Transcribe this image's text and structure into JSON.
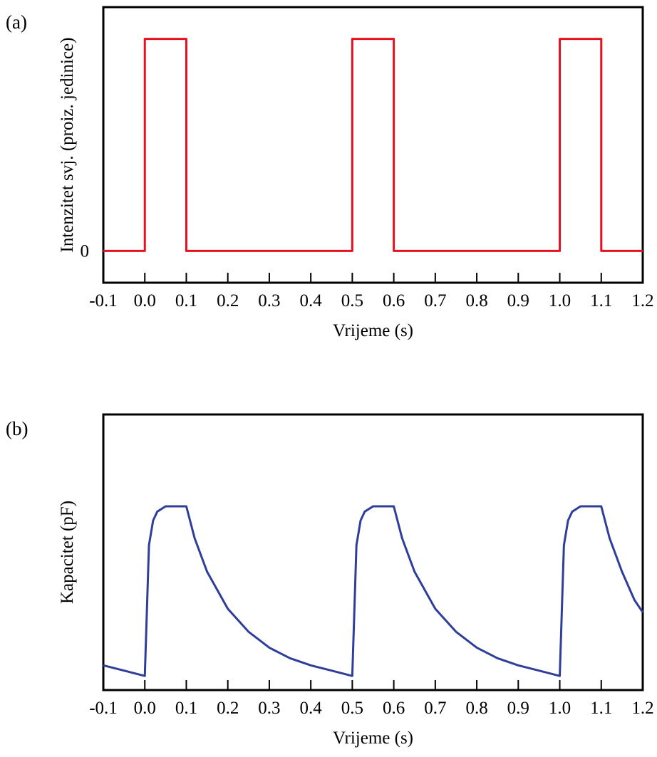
{
  "chart_data": [
    {
      "type": "line",
      "panel_label": "(a)",
      "xlabel": "Vrijeme (s)",
      "ylabel": "Intenzitet svj. (proiz. jedinice)",
      "xlim": [
        -0.1,
        1.2
      ],
      "ylim": [
        -0.15,
        1.15
      ],
      "x_ticks": [
        -0.1,
        0.0,
        0.1,
        0.2,
        0.3,
        0.4,
        0.5,
        0.6,
        0.7,
        0.8,
        0.9,
        1.0,
        1.1,
        1.2
      ],
      "x_tick_labels": [
        "-0.1",
        "0.0",
        "0.1",
        "0.2",
        "0.3",
        "0.4",
        "0.5",
        "0.6",
        "0.7",
        "0.8",
        "0.9",
        "1.0",
        "1.1",
        "1.2"
      ],
      "y_ticks": [
        0
      ],
      "y_tick_labels": [
        "0"
      ],
      "grid": false,
      "series": [
        {
          "color": "#e8101e",
          "x": [
            -0.1,
            0.0,
            0.0,
            0.1,
            0.1,
            0.5,
            0.5,
            0.6,
            0.6,
            1.0,
            1.0,
            1.1,
            1.1,
            1.2
          ],
          "y": [
            0.0,
            0.0,
            1.0,
            1.0,
            0.0,
            0.0,
            1.0,
            1.0,
            0.0,
            0.0,
            1.0,
            1.0,
            0.0,
            0.0
          ]
        }
      ]
    },
    {
      "type": "line",
      "panel_label": "(b)",
      "xlabel": "Vrijeme (s)",
      "ylabel": "Kapacitet (pF)",
      "xlim": [
        -0.1,
        1.2
      ],
      "ylim": [
        -0.04,
        1.52
      ],
      "x_ticks": [
        -0.1,
        0.0,
        0.1,
        0.2,
        0.3,
        0.4,
        0.5,
        0.6,
        0.7,
        0.8,
        0.9,
        1.0,
        1.1,
        1.2
      ],
      "x_tick_labels": [
        "-0.1",
        "0.0",
        "0.1",
        "0.2",
        "0.3",
        "0.4",
        "0.5",
        "0.6",
        "0.7",
        "0.8",
        "0.9",
        "1.0",
        "1.1",
        "1.2"
      ],
      "y_ticks": [],
      "grid": false,
      "series": [
        {
          "color": "#2e3e99",
          "x": [
            -0.1,
            -0.05,
            0.0,
            0.0,
            0.01,
            0.02,
            0.03,
            0.05,
            0.07,
            0.1,
            0.12,
            0.15,
            0.2,
            0.25,
            0.3,
            0.35,
            0.4,
            0.45,
            0.5,
            0.5,
            0.51,
            0.52,
            0.53,
            0.55,
            0.57,
            0.6,
            0.62,
            0.65,
            0.7,
            0.75,
            0.8,
            0.85,
            0.9,
            0.95,
            1.0,
            1.0,
            1.01,
            1.02,
            1.03,
            1.05,
            1.07,
            1.1,
            1.12,
            1.15,
            1.18,
            1.2
          ],
          "y": [
            0.1,
            0.07,
            0.04,
            0.04,
            0.78,
            0.92,
            0.97,
            1.0,
            1.0,
            1.0,
            0.82,
            0.63,
            0.42,
            0.29,
            0.2,
            0.14,
            0.1,
            0.07,
            0.04,
            0.04,
            0.78,
            0.92,
            0.97,
            1.0,
            1.0,
            1.0,
            0.82,
            0.63,
            0.42,
            0.29,
            0.2,
            0.14,
            0.1,
            0.07,
            0.04,
            0.04,
            0.78,
            0.92,
            0.97,
            1.0,
            1.0,
            1.0,
            0.82,
            0.63,
            0.47,
            0.4
          ]
        }
      ]
    }
  ]
}
